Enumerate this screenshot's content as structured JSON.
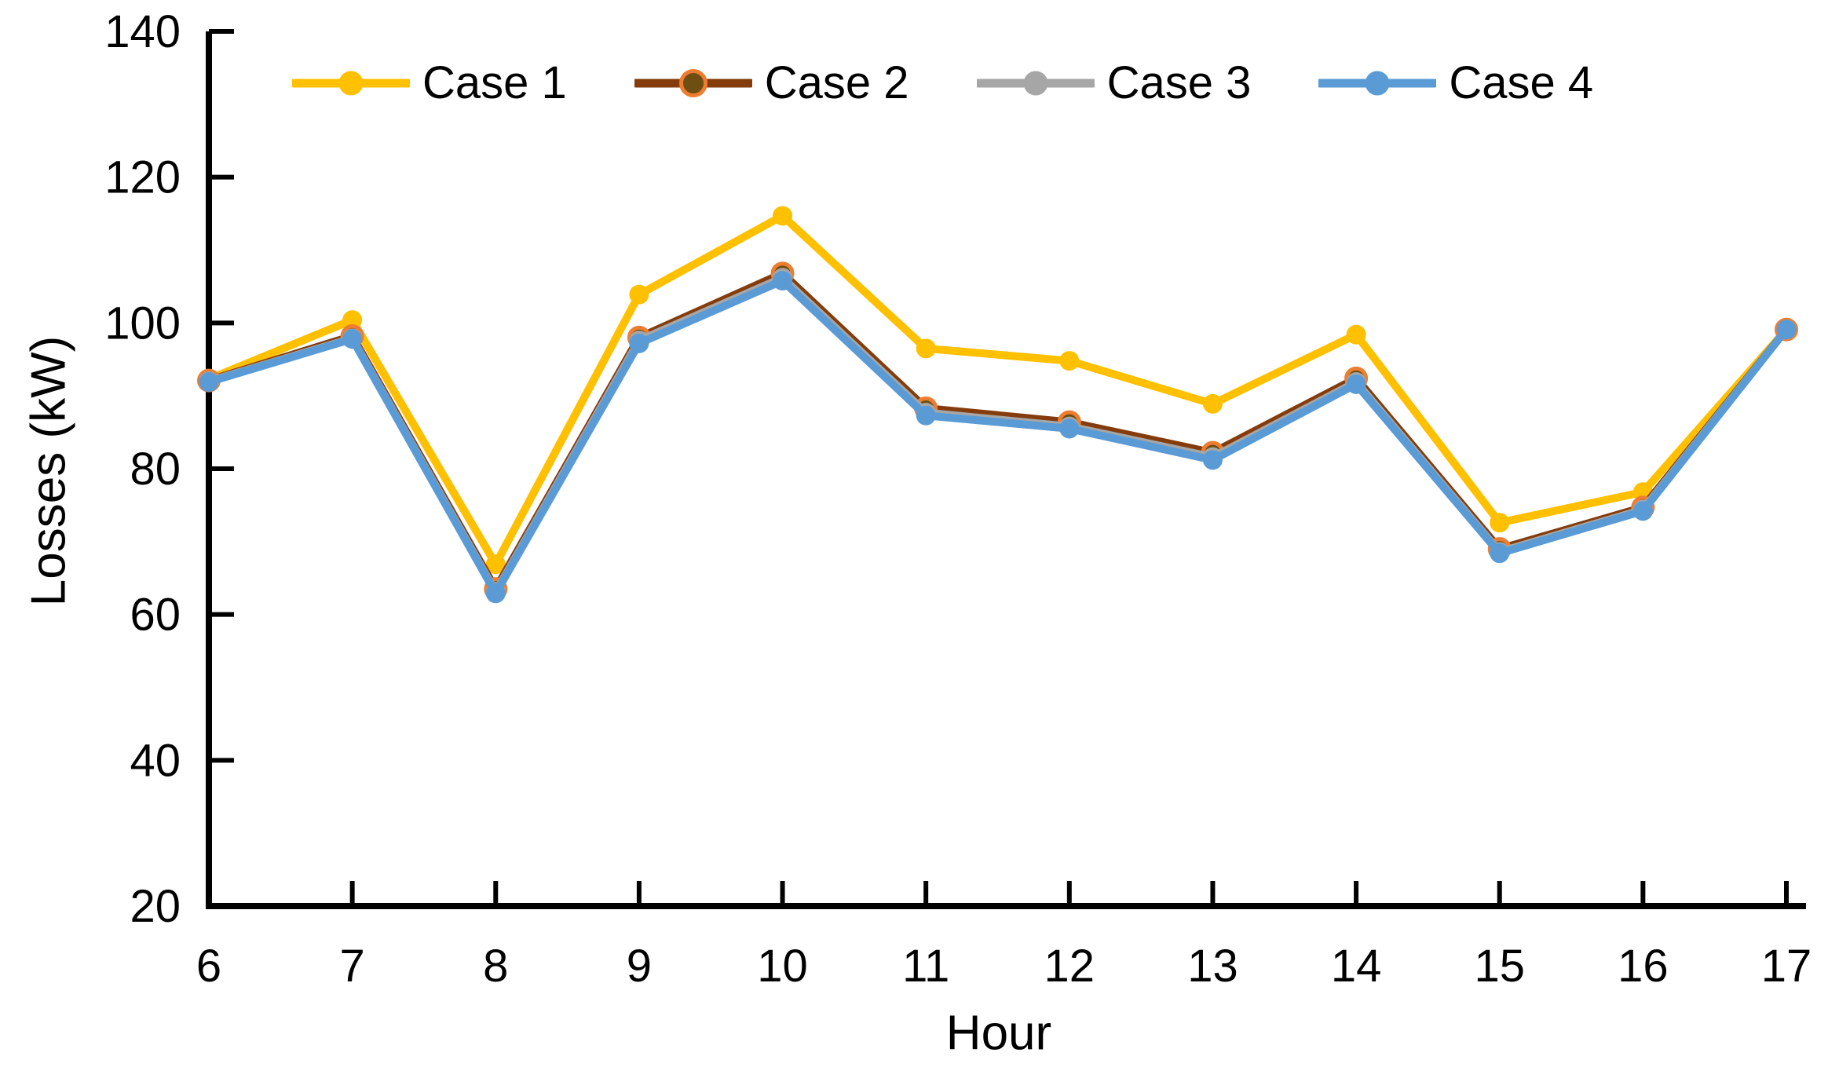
{
  "chart_data": {
    "type": "line",
    "title": "",
    "xlabel": "Hour",
    "ylabel": "Losses (kW)",
    "x": [
      6,
      7,
      8,
      9,
      10,
      11,
      12,
      13,
      14,
      15,
      16,
      17
    ],
    "xlim": [
      6,
      17
    ],
    "ylim": [
      20,
      140
    ],
    "y_ticks": [
      20,
      40,
      60,
      80,
      100,
      120,
      140
    ],
    "grid": false,
    "legend_position": "top-inside-horizontal",
    "axis_color": "#000000",
    "background_color": "#ffffff",
    "series": [
      {
        "name": "Case 1",
        "color": "#FFC000",
        "marker": "circle",
        "marker_fill": "#FFC000",
        "marker_stroke": "none",
        "values": [
          92.3,
          100.4,
          66.9,
          103.9,
          114.7,
          96.5,
          94.8,
          88.9,
          98.4,
          72.6,
          76.8,
          99.1
        ]
      },
      {
        "name": "Case 2",
        "color": "#843C0C",
        "marker": "circle",
        "marker_fill": "#6E4E12",
        "marker_stroke": "#ED7D31",
        "values": [
          92.1,
          98.2,
          63.5,
          98.0,
          106.8,
          88.3,
          86.4,
          82.2,
          92.4,
          69.0,
          74.7,
          99.1
        ]
      },
      {
        "name": "Case 3",
        "color": "#A6A6A6",
        "marker": "circle",
        "marker_fill": "#A6A6A6",
        "marker_stroke": "none",
        "values": [
          92.0,
          97.9,
          63.1,
          97.6,
          106.2,
          87.7,
          85.8,
          81.6,
          91.9,
          68.6,
          74.4,
          99.1
        ]
      },
      {
        "name": "Case 4",
        "color": "#5B9BD5",
        "marker": "circle",
        "marker_fill": "#5B9BD5",
        "marker_stroke": "none",
        "values": [
          91.9,
          97.8,
          62.9,
          97.2,
          105.8,
          87.3,
          85.5,
          81.2,
          91.6,
          68.4,
          74.2,
          99.1
        ]
      }
    ]
  }
}
